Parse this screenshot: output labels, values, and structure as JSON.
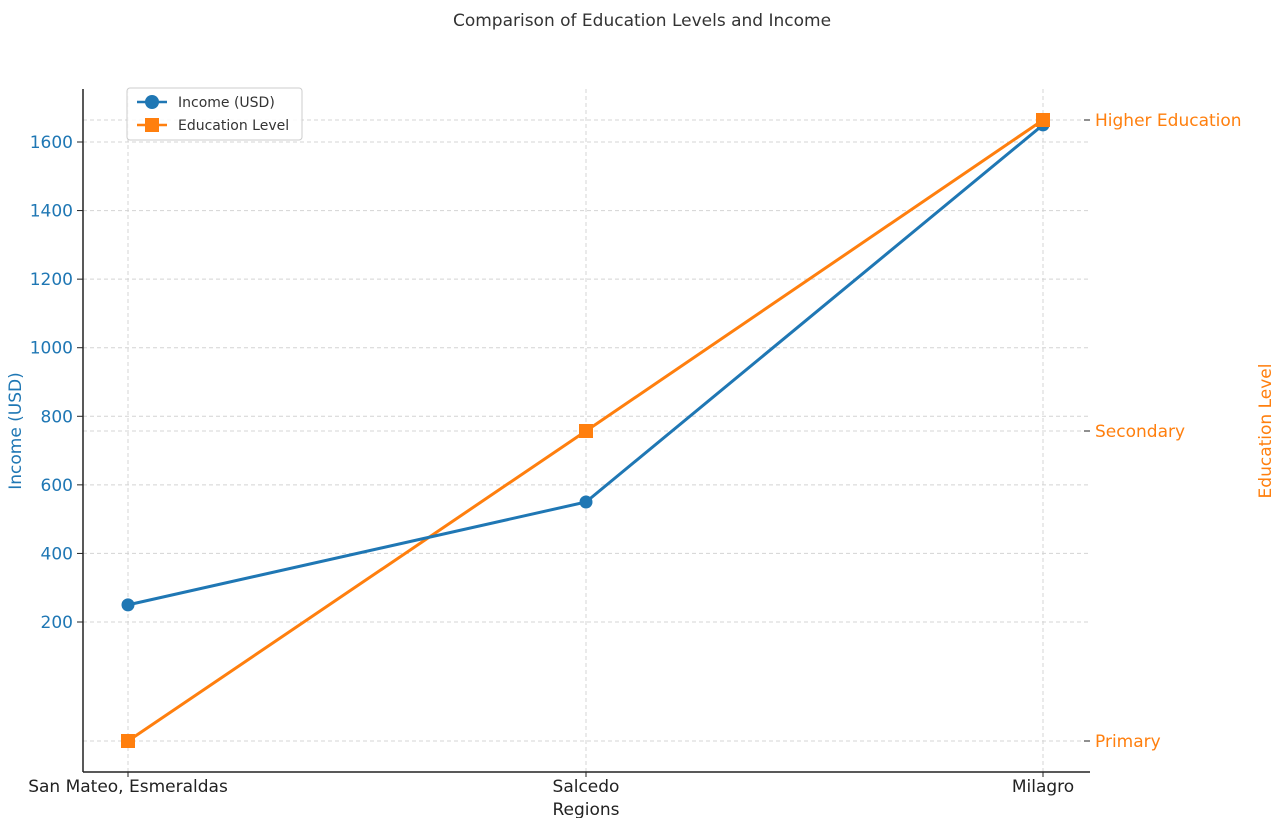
{
  "chart_data": {
    "type": "line",
    "title": "Comparison of Education Levels and Income",
    "xlabel": "Regions",
    "ylabel_left": "Income (USD)",
    "ylabel_right": "Education Level",
    "categories": [
      "San Mateo, Esmeraldas",
      "Salcedo",
      "Milagro"
    ],
    "ylim_left": [
      200,
      1700
    ],
    "yticks_left": [
      200,
      400,
      600,
      800,
      1000,
      1200,
      1400,
      1600
    ],
    "right_axis_ticks": [
      "Primary",
      "Secondary",
      "Higher Education"
    ],
    "grid": true,
    "legend_position": "upper left",
    "series": [
      {
        "name": "Income (USD)",
        "axis": "left",
        "marker": "circle",
        "color": "#1f77b4",
        "values": [
          250,
          550,
          1650
        ]
      },
      {
        "name": "Education Level",
        "axis": "right",
        "marker": "square",
        "color": "#ff7f0e",
        "values": [
          "Primary",
          "Secondary",
          "Higher Education"
        ]
      }
    ]
  }
}
